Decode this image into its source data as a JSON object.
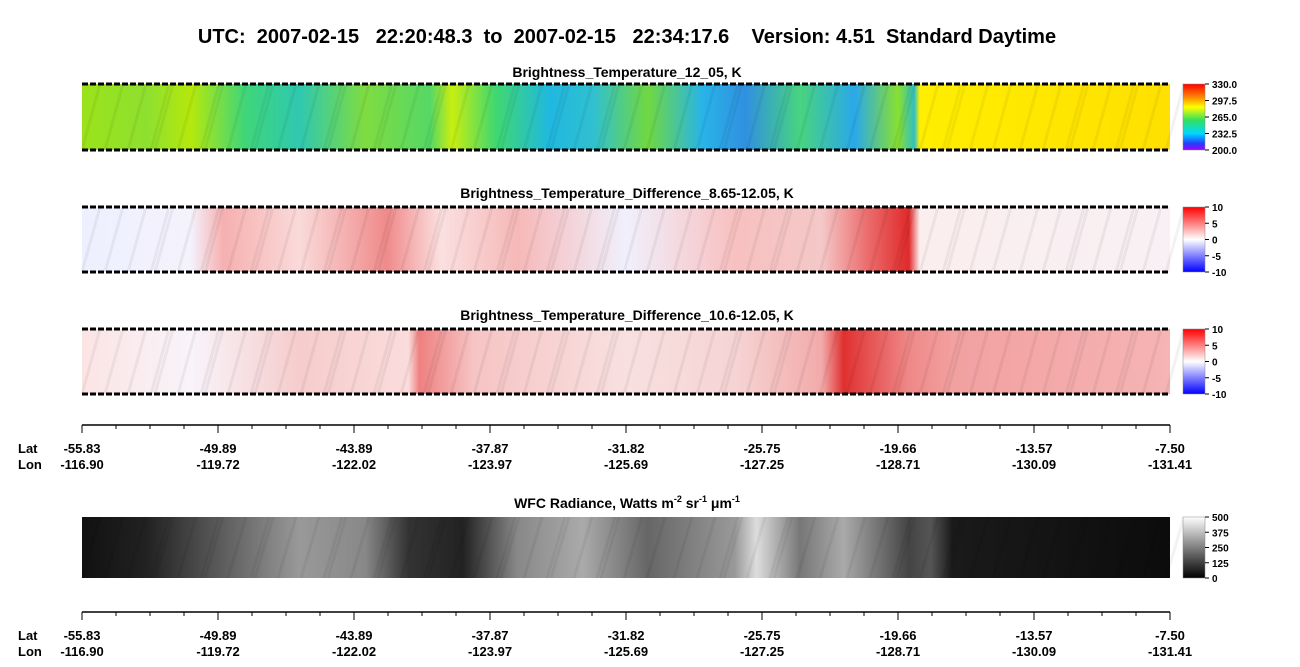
{
  "title": "UTC:  2007-02-15   22:20:48.3  to  2007-02-15   22:34:17.6    Version: 4.51  Standard Daytime",
  "panels": [
    {
      "title": "Brightness_Temperature_12_05, K",
      "colorbar": [
        "330.0",
        "297.5",
        "265.0",
        "232.5",
        "200.0"
      ]
    },
    {
      "title": "Brightness_Temperature_Difference_8.65-12.05, K",
      "colorbar": [
        "10",
        "5",
        "0",
        "-5",
        "-10"
      ]
    },
    {
      "title": "Brightness_Temperature_Difference_10.6-12.05, K",
      "colorbar": [
        "10",
        "5",
        "0",
        "-5",
        "-10"
      ]
    },
    {
      "title_segments": [
        [
          "WFC Radiance, Watts m",
          "-2"
        ],
        [
          " sr",
          "-1"
        ],
        [
          " μm",
          "-1"
        ]
      ],
      "colorbar": [
        "500",
        "375",
        "250",
        "125",
        "0"
      ]
    }
  ],
  "axes": [
    {
      "lat_label": "Lat",
      "lon_label": "Lon",
      "lat": [
        "-55.83",
        "-49.89",
        "-43.89",
        "-37.87",
        "-31.82",
        "-25.75",
        "-19.66",
        "-13.57",
        "-7.50"
      ],
      "lon": [
        "-116.90",
        "-119.72",
        "-122.02",
        "-123.97",
        "-125.69",
        "-127.25",
        "-128.71",
        "-130.09",
        "-131.41"
      ]
    },
    {
      "lat_label": "Lat",
      "lon_label": "Lon",
      "lat": [
        "-55.83",
        "-49.89",
        "-43.89",
        "-37.87",
        "-31.82",
        "-25.75",
        "-19.66",
        "-13.57",
        "-7.50"
      ],
      "lon": [
        "-116.90",
        "-119.72",
        "-122.02",
        "-123.97",
        "-125.69",
        "-127.25",
        "-128.71",
        "-130.09",
        "-131.41"
      ]
    }
  ]
}
